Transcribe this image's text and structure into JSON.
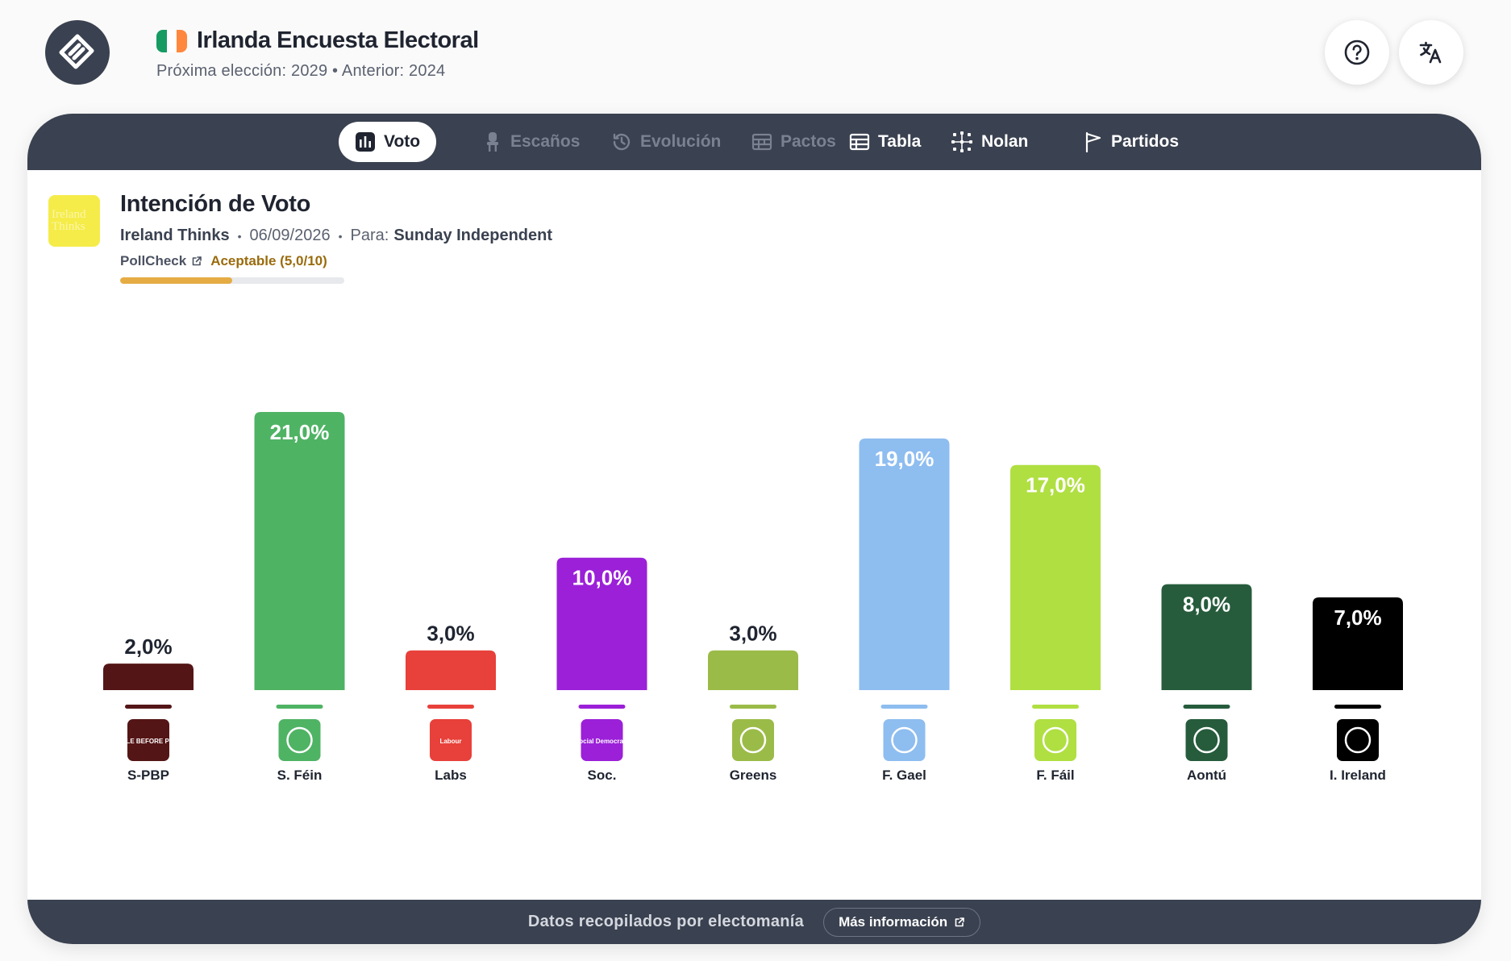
{
  "header": {
    "title": "Irlanda Encuesta Electoral",
    "subtitle": "Próxima elección: 2029 • Anterior: 2024",
    "flag_colors": [
      "#169b62",
      "#ffffff",
      "#ff883e"
    ],
    "logo_icon": "electomania-logo-icon",
    "help_icon": "help-circle-icon",
    "translate_icon": "translate-icon"
  },
  "tabs": [
    {
      "label": "Voto",
      "icon": "bar-chart-icon",
      "state": "active"
    },
    {
      "label": "Escaños",
      "icon": "seat-icon",
      "state": "disabled"
    },
    {
      "label": "Evolución",
      "icon": "history-icon",
      "state": "disabled"
    },
    {
      "label": "Pactos",
      "icon": "pacts-icon",
      "state": "disabled"
    },
    {
      "label": "Tabla",
      "icon": "table-icon",
      "state": "enabled"
    },
    {
      "label": "Nolan",
      "icon": "nolan-icon",
      "state": "enabled"
    },
    {
      "label": "Partidos",
      "icon": "flag-icon",
      "state": "enabled"
    }
  ],
  "poll": {
    "title": "Intención de Voto",
    "pollster": "Ireland Thinks",
    "pollster_logo_text": [
      "Ireland",
      "Thinks"
    ],
    "date": "06/09/2026",
    "client_label": "Para:",
    "client": "Sunday Independent",
    "pollcheck_label": "PollCheck",
    "pollcheck_rating": "Aceptable (5,0/10)",
    "pollcheck_score": 5.0,
    "pollcheck_max": 10
  },
  "chart_data": {
    "type": "bar",
    "categories": [
      "S-PBP",
      "S. Féin",
      "Labs",
      "Soc.",
      "Greens",
      "F. Gael",
      "F. Fáil",
      "Aontú",
      "I. Ireland"
    ],
    "values": [
      2.0,
      21.0,
      3.0,
      10.0,
      3.0,
      19.0,
      17.0,
      8.0,
      7.0
    ],
    "value_labels": [
      "2,0%",
      "21,0%",
      "3,0%",
      "10,0%",
      "3,0%",
      "19,0%",
      "17,0%",
      "8,0%",
      "7,0%"
    ],
    "colors": [
      "#541516",
      "#4fb364",
      "#e8403a",
      "#9b20d8",
      "#9bbb48",
      "#8ebdf0",
      "#b0df42",
      "#265c3c",
      "#000000"
    ],
    "party_logo_texts": [
      "PEOPLE BEFORE PROFIT",
      "",
      "Labour",
      "Social Democrats",
      "",
      "",
      "",
      "",
      ""
    ],
    "title": "Intención de Voto",
    "xlabel": "",
    "ylabel": "",
    "ylim": [
      0,
      21.0
    ],
    "grid": false,
    "legend": "none"
  },
  "footer": {
    "text": "Datos recopilados por electomanía",
    "button_label": "Más información",
    "button_icon": "external-link-icon"
  }
}
